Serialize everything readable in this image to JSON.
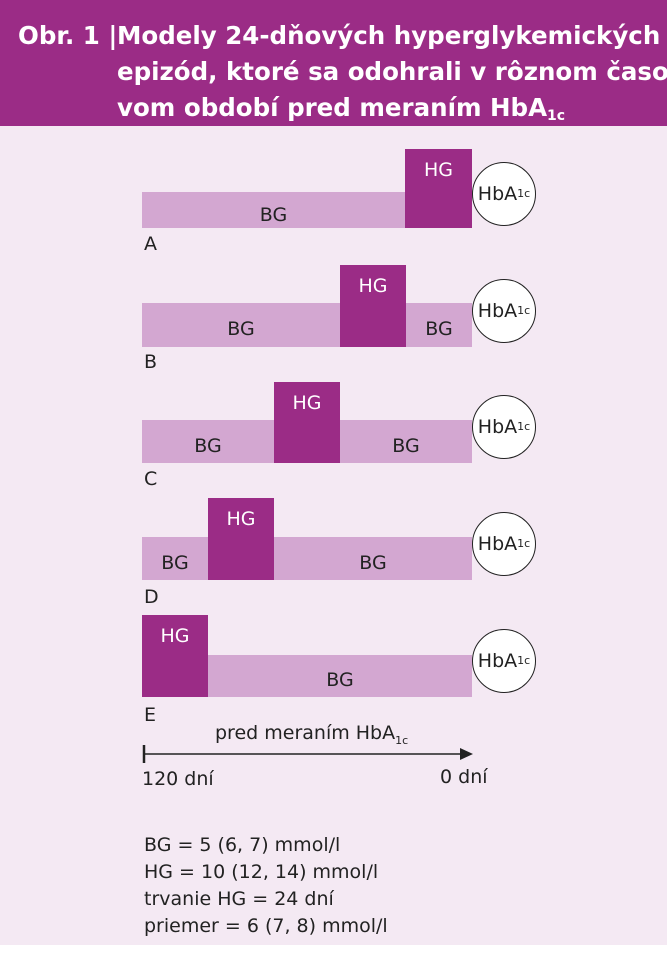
{
  "header": {
    "prefix": "Obr. 1 |",
    "line1": "Modely 24-dňových hyperglykemických",
    "line2": "epizód, ktoré sa odohrali v rôznom časo-",
    "line3": "vom období pred meraním HbA",
    "line3_sub": "1c"
  },
  "bars": {
    "bg_label": "BG",
    "hg_label": "HG"
  },
  "hba1c": {
    "main": "HbA",
    "sub": "1c"
  },
  "scenarios": [
    "A",
    "B",
    "C",
    "D",
    "E"
  ],
  "axis": {
    "title": "pred meraním HbA",
    "title_sub": "1c",
    "start_label": "120 dní",
    "end_label": "0 dní"
  },
  "legend": [
    "BG = 5 (6, 7) mmol/l",
    "HG = 10 (12, 14) mmol/l",
    "trvanie HG = 24 dní",
    "priemer = 6 (7, 8) mmol/l"
  ],
  "colors": {
    "header_bg": "#9b2c86",
    "panel_bg": "#f4e9f3",
    "hg_bar": "#9b2c86",
    "bg_bar": "#d3a7d1"
  }
}
